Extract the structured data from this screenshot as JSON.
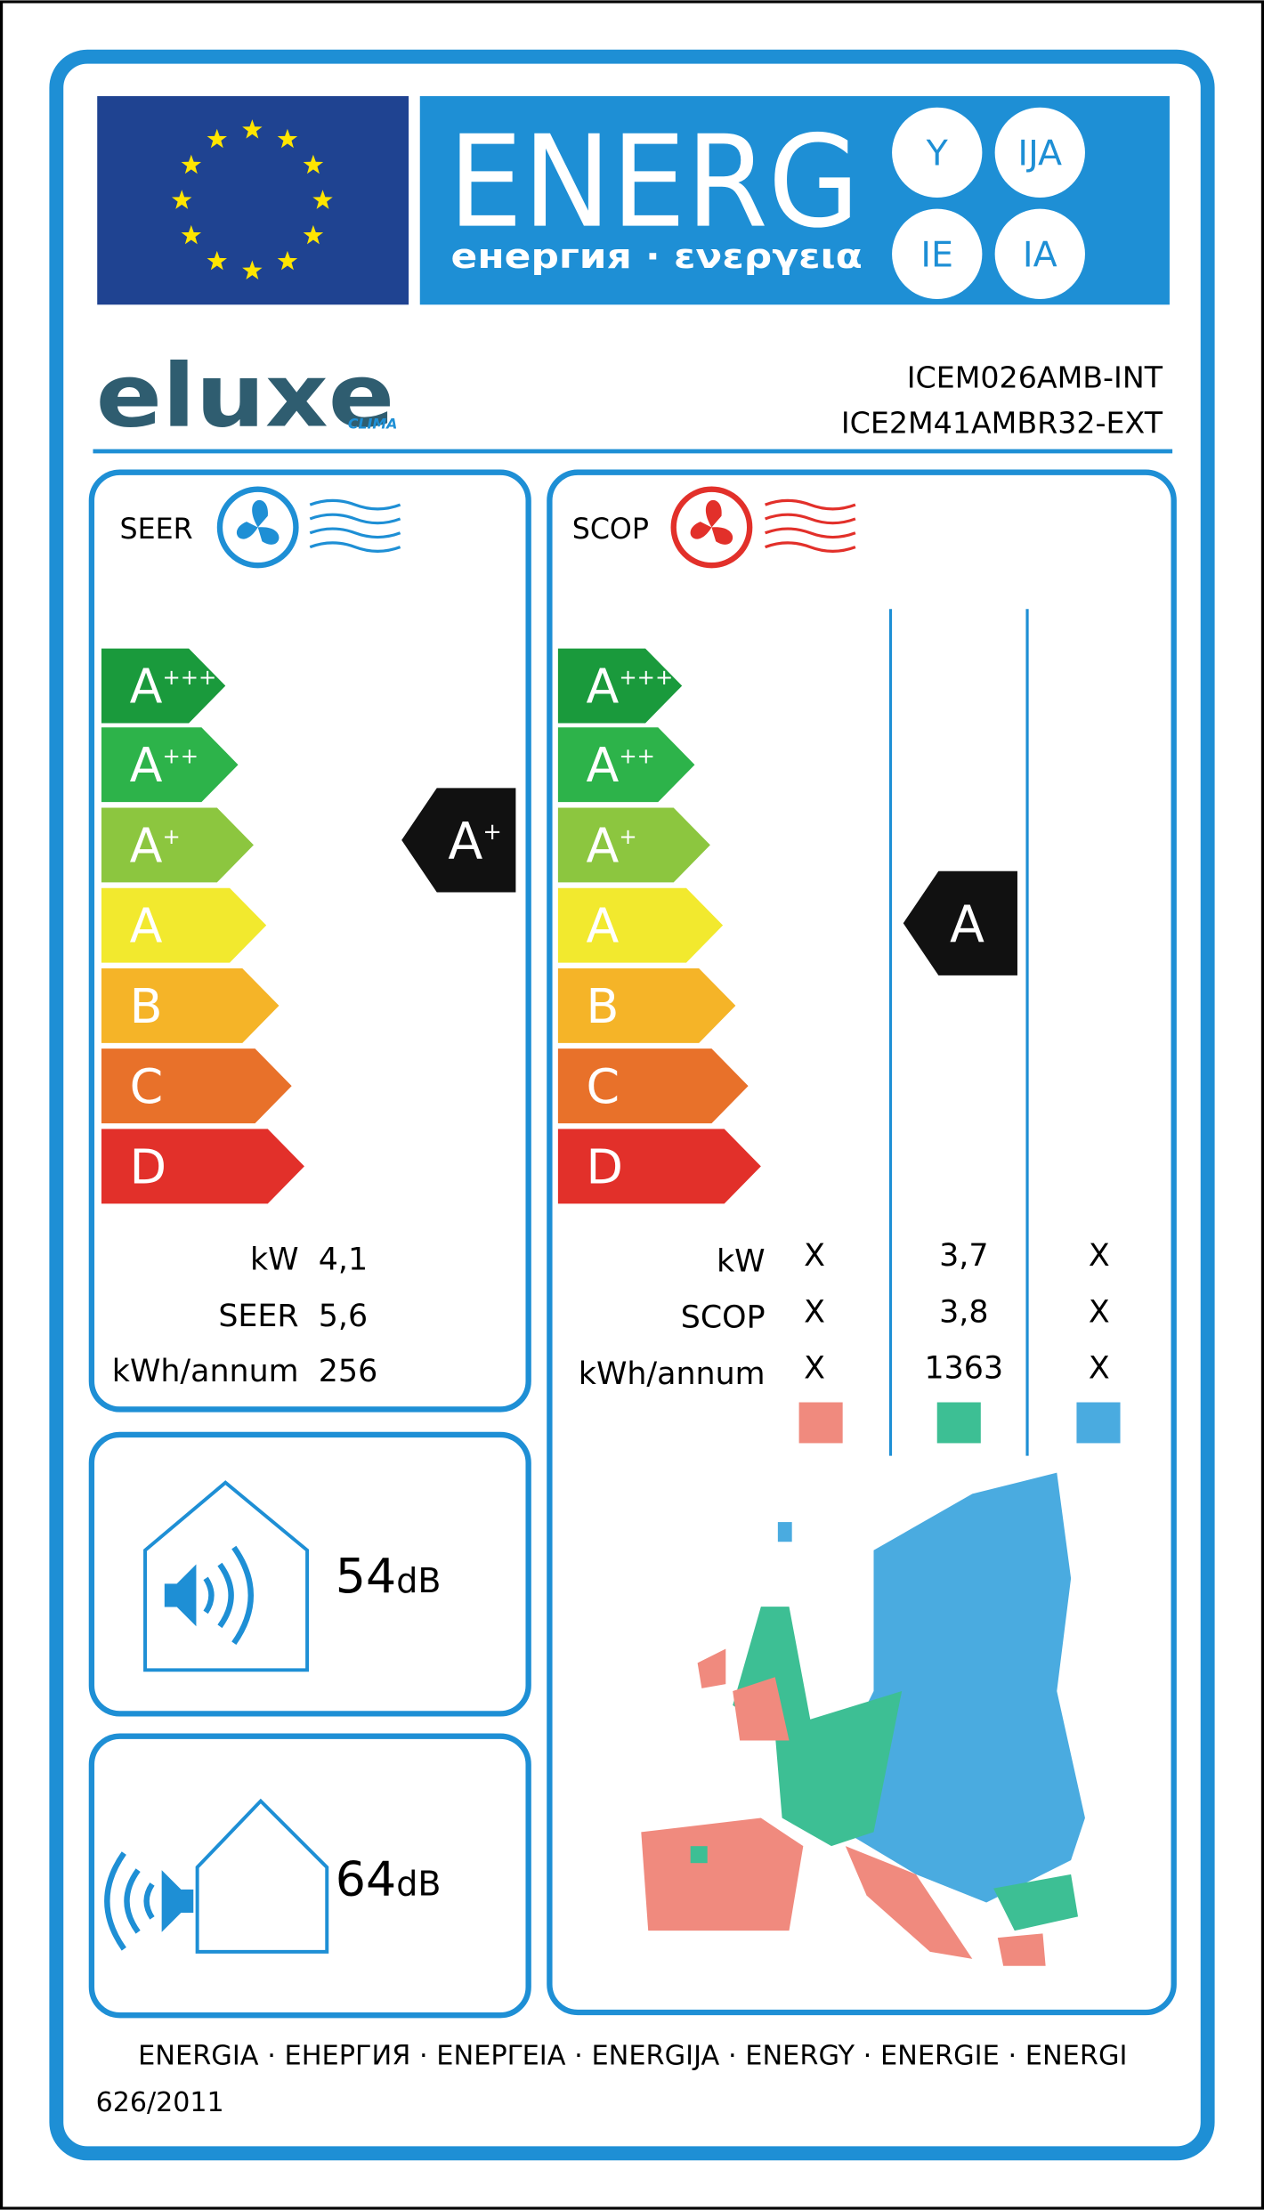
{
  "header": {
    "title": "ENERG",
    "subtitle": "енергия · ενεργεια",
    "suffixes": [
      "Y",
      "IJA",
      "IE",
      "IA"
    ]
  },
  "brand": {
    "name": "eluxe",
    "tagline": "CLIMA"
  },
  "models": [
    "ICEM026AMB-INT",
    "ICE2M41AMBR32-EXT"
  ],
  "classes": [
    {
      "letter": "A",
      "sup": "+++"
    },
    {
      "letter": "A",
      "sup": "++"
    },
    {
      "letter": "A",
      "sup": "+"
    },
    {
      "letter": "A"
    },
    {
      "letter": "B"
    },
    {
      "letter": "C"
    },
    {
      "letter": "D"
    }
  ],
  "cooling": {
    "label": "SEER",
    "rating": {
      "letter": "A",
      "sup": "+"
    },
    "rows": [
      {
        "label": "kW",
        "value": "4,1"
      },
      {
        "label": "SEER",
        "value": "5,6"
      },
      {
        "label": "kWh/annum",
        "value": "256"
      }
    ]
  },
  "heating": {
    "label": "SCOP",
    "rating": {
      "letter": "A"
    },
    "rows": [
      {
        "label": "kW",
        "values": [
          "X",
          "3,7",
          "X"
        ]
      },
      {
        "label": "SCOP",
        "values": [
          "X",
          "3,8",
          "X"
        ]
      },
      {
        "label": "kWh/annum",
        "values": [
          "X",
          "1363",
          "X"
        ]
      }
    ],
    "zone_colors": [
      "#f08a7e",
      "#3dbf94",
      "#4aabe0"
    ]
  },
  "noise": {
    "indoor": {
      "value": "54",
      "unit": "dB"
    },
    "outdoor": {
      "value": "64",
      "unit": "dB"
    }
  },
  "footer": {
    "languages": "ENERGIA · ЕНЕРГИЯ · ΕΝΕΡΓΕΙΑ · ENERGIJA · ENERGY · ENERGIE · ENERGI",
    "regulation": "626/2011"
  }
}
